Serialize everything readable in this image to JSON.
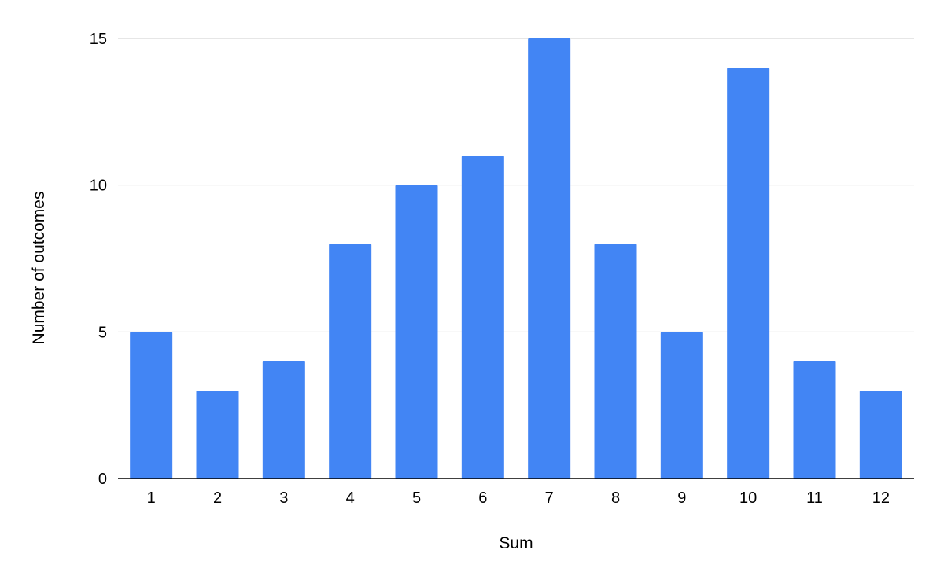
{
  "chart_data": {
    "type": "bar",
    "title": "",
    "xlabel": "Sum",
    "ylabel": "Number of outcomes",
    "categories": [
      "1",
      "2",
      "3",
      "4",
      "5",
      "6",
      "7",
      "8",
      "9",
      "10",
      "11",
      "12"
    ],
    "values": [
      5,
      3,
      4,
      8,
      10,
      11,
      15,
      8,
      5,
      14,
      4,
      3
    ],
    "ylim": [
      0,
      15
    ],
    "yticks": [
      0,
      5,
      10,
      15
    ],
    "grid": true,
    "legend": "none",
    "bar_color": "#4285f4"
  }
}
